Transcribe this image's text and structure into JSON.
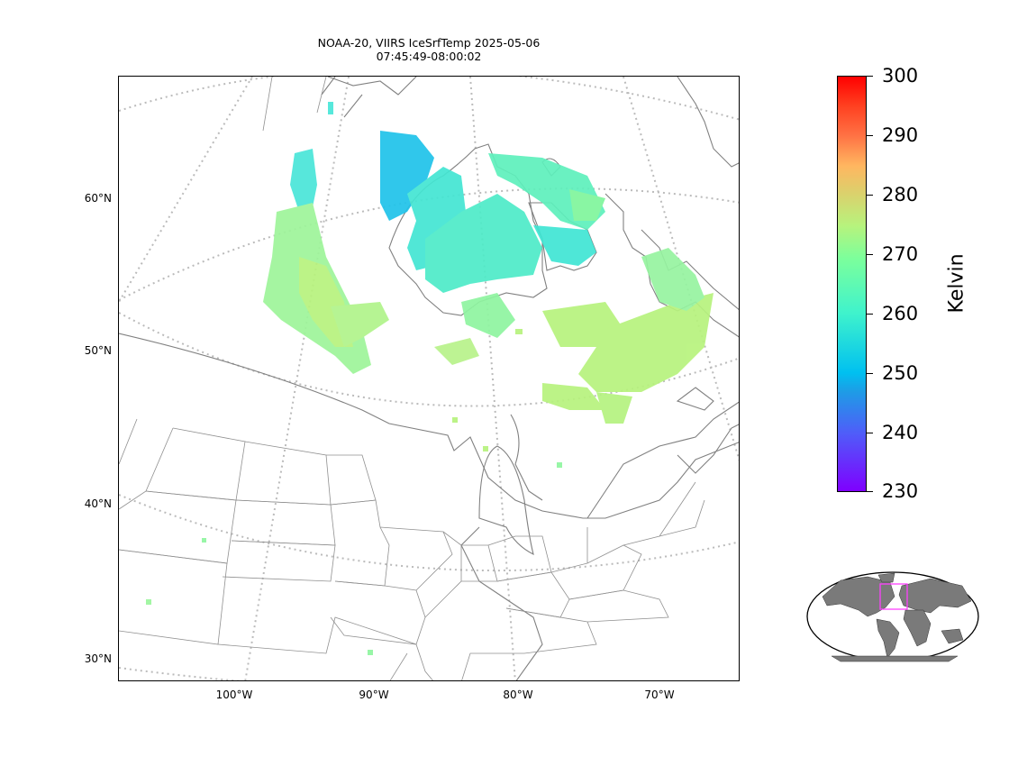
{
  "title": "NOAA-20, VIIRS IceSrfTemp 2025-05-06",
  "subtitle": "07:45:49-08:00:02",
  "lat_labels": [
    "60°N",
    "50°N",
    "40°N",
    "30°N"
  ],
  "lon_labels": [
    "100°W",
    "90°W",
    "80°W",
    "70°W"
  ],
  "colorbar": {
    "label": "Kelvin",
    "ticks": [
      "300",
      "290",
      "280",
      "270",
      "260",
      "250",
      "240",
      "230"
    ],
    "min": 230,
    "max": 300,
    "colormap": "rainbow"
  },
  "colors": {
    "coastline": "#808080",
    "graticule": "#bbbbbb",
    "inset_land": "#7a7a7a",
    "inset_box": "#ff40ff"
  }
}
